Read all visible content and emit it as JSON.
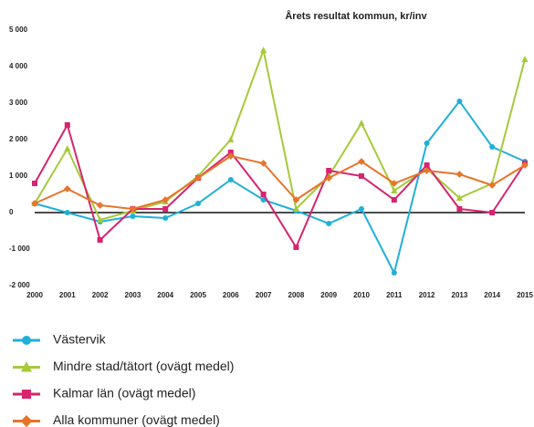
{
  "chart_data": {
    "type": "line",
    "title": "Årets resultat kommun, kr/inv",
    "categories": [
      "2000",
      "2001",
      "2002",
      "2003",
      "2004",
      "2005",
      "2006",
      "2007",
      "2008",
      "2009",
      "2010",
      "2011",
      "2012",
      "2013",
      "2014",
      "2015"
    ],
    "ylim": [
      -2000,
      5000
    ],
    "yticks": [
      {
        "value": -2000,
        "label": "-2 000"
      },
      {
        "value": -1000,
        "label": "-1 000"
      },
      0,
      {
        "value": 1000,
        "label": "1 000"
      },
      {
        "value": 2000,
        "label": "2 000"
      },
      {
        "value": 3000,
        "label": "3 000"
      },
      {
        "value": 4000,
        "label": "4 000"
      },
      {
        "value": 5000,
        "label": "5 000"
      }
    ],
    "grid": false,
    "legend": "bottom",
    "series": [
      {
        "name": "Västervik",
        "color": "#1fb0d8",
        "marker": "circle",
        "values": [
          250,
          0,
          -250,
          -100,
          -150,
          250,
          900,
          350,
          50,
          -300,
          100,
          -1650,
          1900,
          3050,
          1800,
          1400
        ]
      },
      {
        "name": "Mindre stad/tätort (ovägt medel)",
        "color": "#a6c93a",
        "marker": "triangle",
        "values": [
          250,
          1750,
          -200,
          50,
          300,
          1000,
          2000,
          4450,
          100,
          1000,
          2450,
          600,
          1200,
          400,
          800,
          4200
        ]
      },
      {
        "name": "Kalmar län (ovägt medel)",
        "color": "#d6246e",
        "marker": "square",
        "values": [
          800,
          2400,
          -750,
          100,
          100,
          950,
          1650,
          500,
          -950,
          1150,
          1000,
          350,
          1300,
          100,
          0,
          1350
        ]
      },
      {
        "name": "Alla kommuner (ovägt medel)",
        "color": "#e8742a",
        "marker": "diamond",
        "values": [
          250,
          650,
          200,
          100,
          350,
          950,
          1550,
          1350,
          350,
          950,
          1400,
          800,
          1150,
          1050,
          750,
          1300
        ]
      }
    ]
  }
}
